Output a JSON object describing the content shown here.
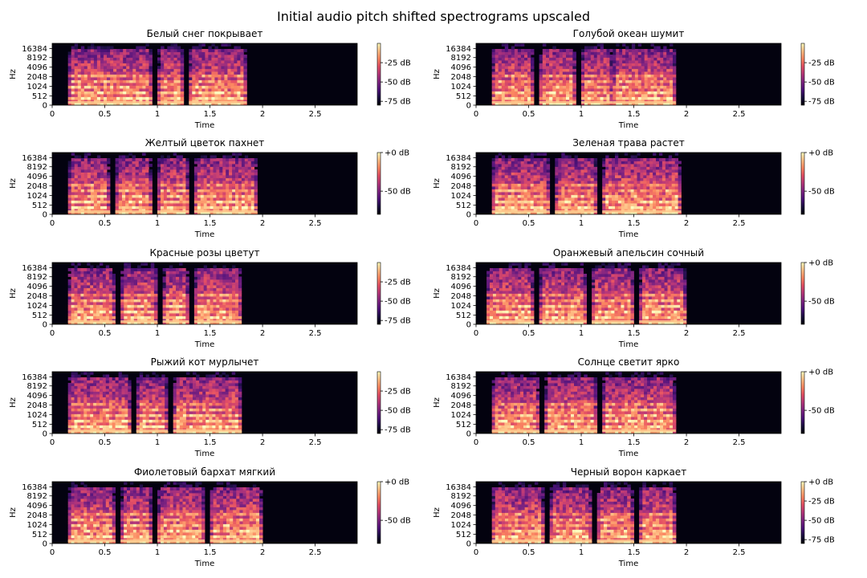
{
  "figure": {
    "suptitle": "Initial audio pitch shifted spectrograms upscaled",
    "colors": {
      "background": "#03020f",
      "magma_low": "#000004",
      "magma_mid": "#b5367a",
      "magma_high": "#fcfdbf"
    }
  },
  "chart_data": [
    {
      "type": "heatmap",
      "title": "Белый снег покрывает",
      "xlabel": "Time",
      "ylabel": "Hz",
      "x_ticks": [
        0,
        0.5,
        1,
        1.5,
        2,
        2.5
      ],
      "x_tick_labels": [
        "0",
        "0.5",
        "1",
        "1.5",
        "2",
        "2.5"
      ],
      "xlim": [
        0,
        2.9
      ],
      "y_ticks": [
        0,
        512,
        1024,
        2048,
        4096,
        8192,
        16384
      ],
      "y_tick_labels": [
        "0",
        "512",
        "1024",
        "2048",
        "4096",
        "8192",
        "16384"
      ],
      "yscale": "log",
      "colorbar_ticks": [
        -25,
        -50,
        -75
      ],
      "colorbar_labels": [
        "-25 dB",
        "-50 dB",
        "-75 dB"
      ],
      "colorbar_range": [
        -80,
        0
      ],
      "active_time": [
        0.15,
        1.85
      ],
      "segments": [
        [
          0.15,
          0.95
        ],
        [
          1.0,
          1.25
        ],
        [
          1.3,
          1.85
        ]
      ]
    },
    {
      "type": "heatmap",
      "title": "Голубой океан шумит",
      "xlabel": "Time",
      "ylabel": "Hz",
      "x_ticks": [
        0,
        0.5,
        1,
        1.5,
        2,
        2.5
      ],
      "x_tick_labels": [
        "0",
        "0.5",
        "1",
        "1.5",
        "2",
        "2.5"
      ],
      "xlim": [
        0,
        2.9
      ],
      "y_ticks": [
        0,
        512,
        1024,
        2048,
        4096,
        8192,
        16384
      ],
      "y_tick_labels": [
        "0",
        "512",
        "1024",
        "2048",
        "4096",
        "8192",
        "16384"
      ],
      "yscale": "log",
      "colorbar_ticks": [
        -25,
        -50,
        -75
      ],
      "colorbar_labels": [
        "-25 dB",
        "-50 dB",
        "-75 dB"
      ],
      "colorbar_range": [
        -80,
        0
      ],
      "active_time": [
        0.15,
        1.9
      ],
      "segments": [
        [
          0.15,
          0.55
        ],
        [
          0.6,
          0.95
        ],
        [
          1.0,
          1.3
        ],
        [
          1.3,
          1.9
        ]
      ]
    },
    {
      "type": "heatmap",
      "title": "Желтый цветок пахнет",
      "xlabel": "Time",
      "ylabel": "Hz",
      "x_ticks": [
        0,
        0.5,
        1,
        1.5,
        2,
        2.5
      ],
      "x_tick_labels": [
        "0",
        "0.5",
        "1",
        "1.5",
        "2",
        "2.5"
      ],
      "xlim": [
        0,
        2.9
      ],
      "y_ticks": [
        0,
        512,
        1024,
        2048,
        4096,
        8192,
        16384
      ],
      "y_tick_labels": [
        "0",
        "512",
        "1024",
        "2048",
        "4096",
        "8192",
        "16384"
      ],
      "yscale": "log",
      "colorbar_ticks": [
        0,
        -50
      ],
      "colorbar_labels": [
        "+0 dB",
        "-50 dB"
      ],
      "colorbar_range": [
        -80,
        0
      ],
      "active_time": [
        0.15,
        1.95
      ],
      "segments": [
        [
          0.15,
          0.55
        ],
        [
          0.6,
          0.95
        ],
        [
          1.0,
          1.3
        ],
        [
          1.35,
          1.95
        ]
      ]
    },
    {
      "type": "heatmap",
      "title": "Зеленая трава растет",
      "xlabel": "Time",
      "ylabel": "Hz",
      "x_ticks": [
        0,
        0.5,
        1,
        1.5,
        2,
        2.5
      ],
      "x_tick_labels": [
        "0",
        "0.5",
        "1",
        "1.5",
        "2",
        "2.5"
      ],
      "xlim": [
        0,
        2.9
      ],
      "y_ticks": [
        0,
        512,
        1024,
        2048,
        4096,
        8192,
        16384
      ],
      "y_tick_labels": [
        "0",
        "512",
        "1024",
        "2048",
        "4096",
        "8192",
        "16384"
      ],
      "yscale": "log",
      "colorbar_ticks": [
        0,
        -50
      ],
      "colorbar_labels": [
        "+0 dB",
        "-50 dB"
      ],
      "colorbar_range": [
        -80,
        0
      ],
      "active_time": [
        0.15,
        1.95
      ],
      "segments": [
        [
          0.15,
          0.7
        ],
        [
          0.75,
          1.15
        ],
        [
          1.2,
          1.95
        ]
      ]
    },
    {
      "type": "heatmap",
      "title": "Красные розы цветут",
      "xlabel": "Time",
      "ylabel": "Hz",
      "x_ticks": [
        0,
        0.5,
        1,
        1.5,
        2,
        2.5
      ],
      "x_tick_labels": [
        "0",
        "0.5",
        "1",
        "1.5",
        "2",
        "2.5"
      ],
      "xlim": [
        0,
        2.9
      ],
      "y_ticks": [
        0,
        512,
        1024,
        2048,
        4096,
        8192,
        16384
      ],
      "y_tick_labels": [
        "0",
        "512",
        "1024",
        "2048",
        "4096",
        "8192",
        "16384"
      ],
      "yscale": "log",
      "colorbar_ticks": [
        -25,
        -50,
        -75
      ],
      "colorbar_labels": [
        "-25 dB",
        "-50 dB",
        "-75 dB"
      ],
      "colorbar_range": [
        -80,
        0
      ],
      "active_time": [
        0.15,
        1.8
      ],
      "segments": [
        [
          0.15,
          0.6
        ],
        [
          0.65,
          1.0
        ],
        [
          1.05,
          1.3
        ],
        [
          1.35,
          1.8
        ]
      ]
    },
    {
      "type": "heatmap",
      "title": "Оранжевый апельсин сочный",
      "xlabel": "Time",
      "ylabel": "Hz",
      "x_ticks": [
        0,
        0.5,
        1,
        1.5,
        2,
        2.5
      ],
      "x_tick_labels": [
        "0",
        "0.5",
        "1",
        "1.5",
        "2",
        "2.5"
      ],
      "xlim": [
        0,
        2.9
      ],
      "y_ticks": [
        0,
        512,
        1024,
        2048,
        4096,
        8192,
        16384
      ],
      "y_tick_labels": [
        "0",
        "512",
        "1024",
        "2048",
        "4096",
        "8192",
        "16384"
      ],
      "yscale": "log",
      "colorbar_ticks": [
        0,
        -50
      ],
      "colorbar_labels": [
        "+0 dB",
        "-50 dB"
      ],
      "colorbar_range": [
        -80,
        0
      ],
      "active_time": [
        0.1,
        2.0
      ],
      "segments": [
        [
          0.1,
          0.55
        ],
        [
          0.6,
          1.05
        ],
        [
          1.1,
          1.5
        ],
        [
          1.55,
          2.0
        ]
      ]
    },
    {
      "type": "heatmap",
      "title": "Рыжий кот мурлычет",
      "xlabel": "Time",
      "ylabel": "Hz",
      "x_ticks": [
        0,
        0.5,
        1,
        1.5,
        2,
        2.5
      ],
      "x_tick_labels": [
        "0",
        "0.5",
        "1",
        "1.5",
        "2",
        "2.5"
      ],
      "xlim": [
        0,
        2.9
      ],
      "y_ticks": [
        0,
        512,
        1024,
        2048,
        4096,
        8192,
        16384
      ],
      "y_tick_labels": [
        "0",
        "512",
        "1024",
        "2048",
        "4096",
        "8192",
        "16384"
      ],
      "yscale": "log",
      "colorbar_ticks": [
        -25,
        -50,
        -75
      ],
      "colorbar_labels": [
        "-25 dB",
        "-50 dB",
        "-75 dB"
      ],
      "colorbar_range": [
        -80,
        0
      ],
      "active_time": [
        0.15,
        1.8
      ],
      "segments": [
        [
          0.15,
          0.75
        ],
        [
          0.8,
          1.1
        ],
        [
          1.15,
          1.8
        ]
      ]
    },
    {
      "type": "heatmap",
      "title": "Солнце светит ярко",
      "xlabel": "Time",
      "ylabel": "Hz",
      "x_ticks": [
        0,
        0.5,
        1,
        1.5,
        2,
        2.5
      ],
      "x_tick_labels": [
        "0",
        "0.5",
        "1",
        "1.5",
        "2",
        "2.5"
      ],
      "xlim": [
        0,
        2.9
      ],
      "y_ticks": [
        0,
        512,
        1024,
        2048,
        4096,
        8192,
        16384
      ],
      "y_tick_labels": [
        "0",
        "512",
        "1024",
        "2048",
        "4096",
        "8192",
        "16384"
      ],
      "yscale": "log",
      "colorbar_ticks": [
        0,
        -50
      ],
      "colorbar_labels": [
        "+0 dB",
        "-50 dB"
      ],
      "colorbar_range": [
        -80,
        0
      ],
      "active_time": [
        0.15,
        1.9
      ],
      "segments": [
        [
          0.15,
          0.6
        ],
        [
          0.65,
          1.15
        ],
        [
          1.2,
          1.9
        ]
      ]
    },
    {
      "type": "heatmap",
      "title": "Фиолетовый бархат мягкий",
      "xlabel": "Time",
      "ylabel": "Hz",
      "x_ticks": [
        0,
        0.5,
        1,
        1.5,
        2,
        2.5
      ],
      "x_tick_labels": [
        "0",
        "0.5",
        "1",
        "1.5",
        "2",
        "2.5"
      ],
      "xlim": [
        0,
        2.9
      ],
      "y_ticks": [
        0,
        512,
        1024,
        2048,
        4096,
        8192,
        16384
      ],
      "y_tick_labels": [
        "0",
        "512",
        "1024",
        "2048",
        "4096",
        "8192",
        "16384"
      ],
      "yscale": "log",
      "colorbar_ticks": [
        0,
        -50
      ],
      "colorbar_labels": [
        "+0 dB",
        "-50 dB"
      ],
      "colorbar_range": [
        -80,
        0
      ],
      "active_time": [
        0.15,
        2.0
      ],
      "segments": [
        [
          0.15,
          0.6
        ],
        [
          0.65,
          0.95
        ],
        [
          1.0,
          1.45
        ],
        [
          1.5,
          2.0
        ]
      ]
    },
    {
      "type": "heatmap",
      "title": "Черный ворон каркает",
      "xlabel": "Time",
      "ylabel": "Hz",
      "x_ticks": [
        0,
        0.5,
        1,
        1.5,
        2,
        2.5
      ],
      "x_tick_labels": [
        "0",
        "0.5",
        "1",
        "1.5",
        "2",
        "2.5"
      ],
      "xlim": [
        0,
        2.9
      ],
      "y_ticks": [
        0,
        512,
        1024,
        2048,
        4096,
        8192,
        16384
      ],
      "y_tick_labels": [
        "0",
        "512",
        "1024",
        "2048",
        "4096",
        "8192",
        "16384"
      ],
      "yscale": "log",
      "colorbar_ticks": [
        0,
        -25,
        -50,
        -75
      ],
      "colorbar_labels": [
        "+0 dB",
        "-25 dB",
        "-50 dB",
        "-75 dB"
      ],
      "colorbar_range": [
        -80,
        0
      ],
      "active_time": [
        0.15,
        1.9
      ],
      "segments": [
        [
          0.15,
          0.65
        ],
        [
          0.7,
          1.1
        ],
        [
          1.15,
          1.5
        ],
        [
          1.55,
          1.9
        ]
      ]
    }
  ]
}
